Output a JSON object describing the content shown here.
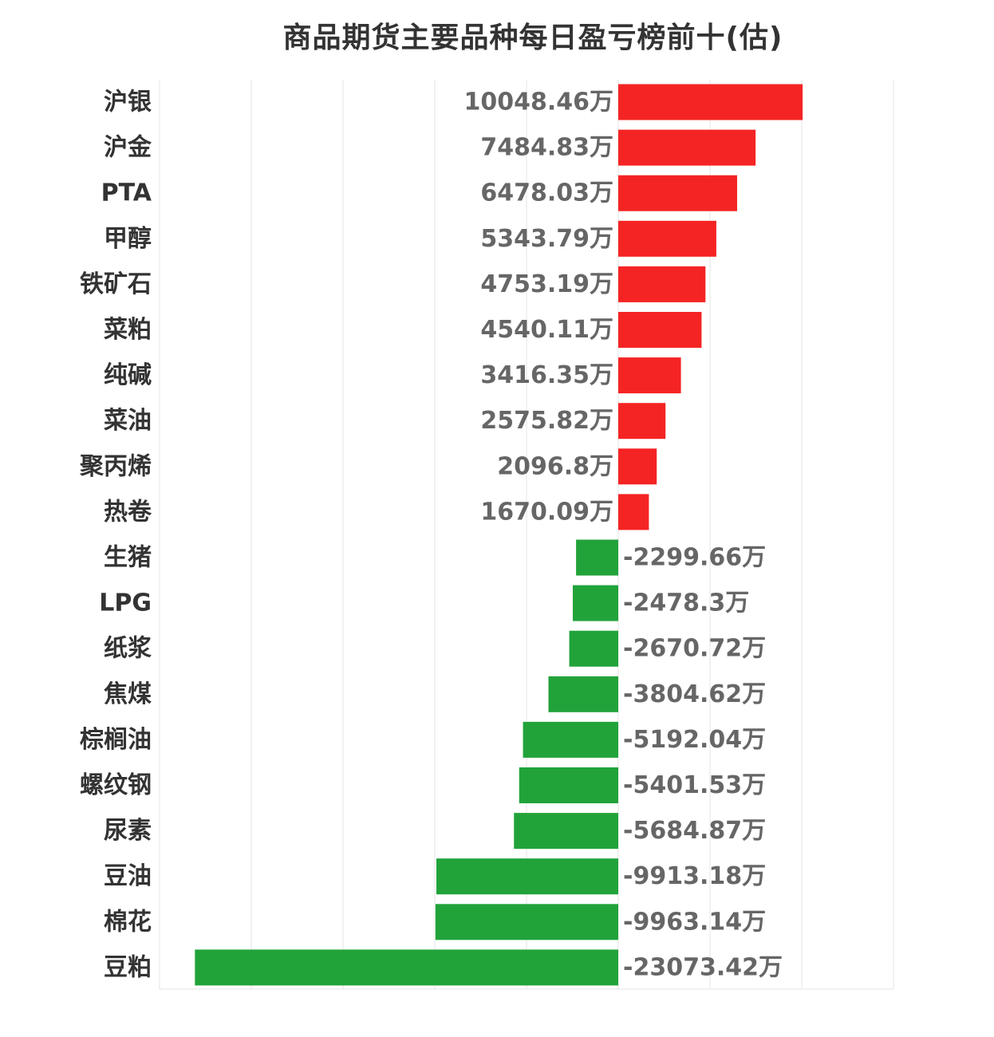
{
  "chart_data": {
    "type": "bar",
    "orientation": "horizontal",
    "title": "商品期货主要品种每日盈亏榜前十(估)",
    "value_suffix": "万",
    "categories": [
      "沪银",
      "沪金",
      "PTA",
      "甲醇",
      "铁矿石",
      "菜粕",
      "纯碱",
      "菜油",
      "聚丙烯",
      "热卷",
      "生猪",
      "LPG",
      "纸浆",
      "焦煤",
      "棕榈油",
      "螺纹钢",
      "尿素",
      "豆油",
      "棉花",
      "豆粕"
    ],
    "values": [
      10048.46,
      7484.83,
      6478.03,
      5343.79,
      4753.19,
      4540.11,
      3416.35,
      2575.82,
      2096.8,
      1670.09,
      -2299.66,
      -2478.3,
      -2670.72,
      -3804.62,
      -5192.04,
      -5401.53,
      -5684.87,
      -9913.18,
      -9963.14,
      -23073.42
    ],
    "labels": [
      "10048.46万",
      "7484.83万",
      "6478.03万",
      "5343.79万",
      "4753.19万",
      "4540.11万",
      "3416.35万",
      "2575.82万",
      "2096.8万",
      "1670.09万",
      "-2299.66万",
      "-2478.3万",
      "-2670.72万",
      "-3804.62万",
      "-5192.04万",
      "-5401.53万",
      "-5684.87万",
      "-9913.18万",
      "-9963.14万",
      "-23073.42万"
    ],
    "xlim": [
      -25000,
      15000
    ],
    "grid": true,
    "colors": {
      "positive": "#f52424",
      "negative": "#21a33a",
      "grid": "#e6e6e6",
      "category_text": "#333333",
      "value_text": "#666666"
    }
  }
}
